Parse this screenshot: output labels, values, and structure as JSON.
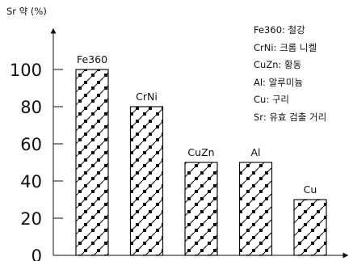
{
  "chart_data": {
    "type": "bar",
    "ylabel": "Sr 약 (%)",
    "xlabel": "",
    "ylim": [
      0,
      100
    ],
    "y_ticks": [
      "0",
      "20",
      "40",
      "60",
      "80",
      "100"
    ],
    "categories": [
      "Fe360",
      "CrNi",
      "CuZn",
      "Al",
      "Cu"
    ],
    "values": [
      100,
      80,
      50,
      50,
      30
    ],
    "bar_fill": "hatched",
    "grid": false,
    "legend_position": "top-right",
    "legend": [
      "Fe360: 철강",
      "CrNi: 크롬 니켈",
      "CuZn: 황동",
      "Al: 알루미늄",
      "Cu: 구리",
      "Sr: 유효 검출 거리"
    ]
  }
}
